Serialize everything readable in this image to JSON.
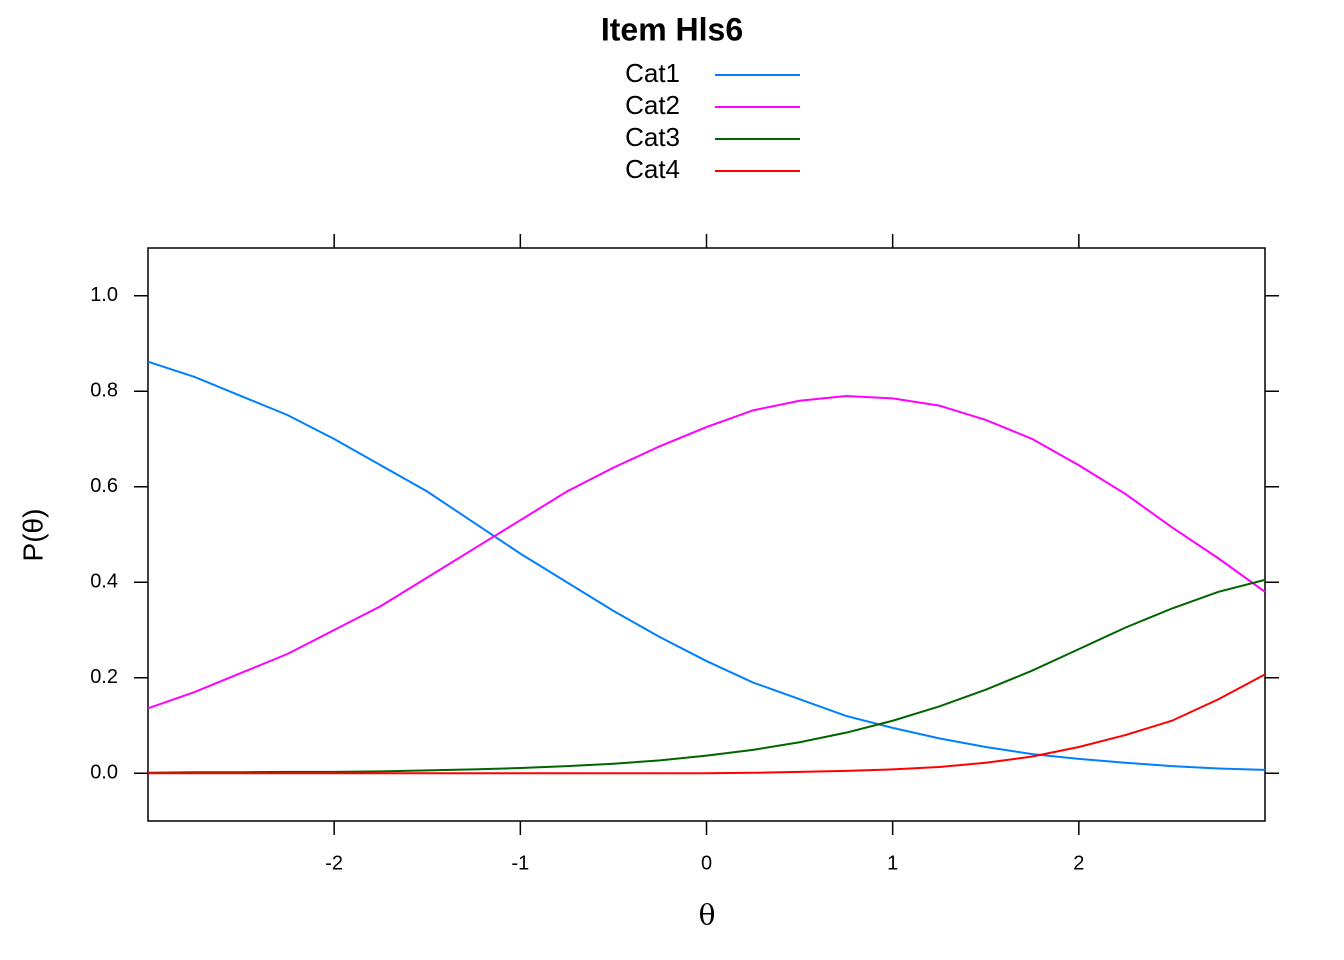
{
  "chart_data": {
    "type": "line",
    "title": "Item Hls6",
    "xlabel": "θ",
    "ylabel": "P(θ)",
    "x": [
      -3,
      -2.75,
      -2.5,
      -2.25,
      -2,
      -1.75,
      -1.5,
      -1.25,
      -1,
      -0.75,
      -0.5,
      -0.25,
      0,
      0.25,
      0.5,
      0.75,
      1,
      1.25,
      1.5,
      1.75,
      2,
      2.25,
      2.5,
      2.75,
      3
    ],
    "series": [
      {
        "name": "Cat1",
        "color": "#0080ff",
        "values": [
          0.862,
          0.83,
          0.79,
          0.75,
          0.7,
          0.645,
          0.59,
          0.525,
          0.46,
          0.4,
          0.34,
          0.285,
          0.235,
          0.19,
          0.155,
          0.12,
          0.095,
          0.073,
          0.055,
          0.04,
          0.03,
          0.022,
          0.015,
          0.01,
          0.007
        ]
      },
      {
        "name": "Cat2",
        "color": "#ff00ff",
        "values": [
          0.136,
          0.17,
          0.21,
          0.25,
          0.3,
          0.35,
          0.41,
          0.47,
          0.53,
          0.59,
          0.64,
          0.685,
          0.725,
          0.76,
          0.78,
          0.79,
          0.785,
          0.77,
          0.74,
          0.7,
          0.645,
          0.585,
          0.515,
          0.45,
          0.38
        ]
      },
      {
        "name": "Cat3",
        "color": "#006400",
        "values": [
          0.001,
          0.002,
          0.002,
          0.003,
          0.003,
          0.004,
          0.006,
          0.008,
          0.011,
          0.015,
          0.02,
          0.027,
          0.037,
          0.049,
          0.065,
          0.085,
          0.11,
          0.14,
          0.175,
          0.215,
          0.26,
          0.305,
          0.345,
          0.38,
          0.405
        ]
      },
      {
        "name": "Cat4",
        "color": "#ff0000",
        "values": [
          0,
          0,
          0,
          0,
          0,
          0,
          0,
          0,
          0,
          0,
          0,
          0,
          0,
          0.001,
          0.003,
          0.005,
          0.008,
          0.013,
          0.022,
          0.035,
          0.055,
          0.08,
          0.11,
          0.155,
          0.207
        ]
      }
    ],
    "xlim": [
      -3,
      3
    ],
    "xticks": [
      -2,
      -1,
      0,
      1,
      2
    ],
    "ylim": [
      -0.1,
      1.1
    ],
    "yticks": [
      {
        "value": 0,
        "label": "0.0"
      },
      0.2,
      0.4,
      0.6,
      0.8,
      {
        "value": 1,
        "label": "1.0"
      }
    ]
  }
}
